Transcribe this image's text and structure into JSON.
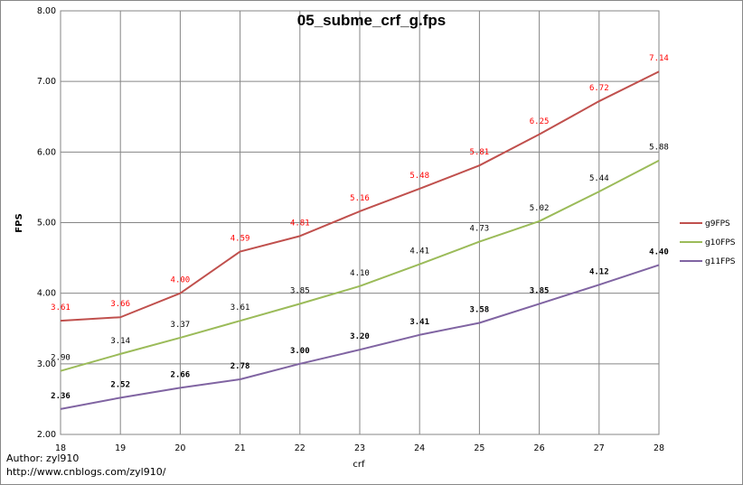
{
  "chart_data": {
    "type": "line",
    "title": "05_subme_crf_g.fps",
    "xlabel": "crf",
    "ylabel": "FPS",
    "x": [
      18,
      19,
      20,
      21,
      22,
      23,
      24,
      25,
      26,
      27,
      28
    ],
    "ylim": [
      2.0,
      8.0
    ],
    "yticks": [
      "2.00",
      "3.00",
      "4.00",
      "5.00",
      "6.00",
      "7.00",
      "8.00"
    ],
    "grid": true,
    "legend_position": "right",
    "series": [
      {
        "name": "g9FPS",
        "color": "#c0504d",
        "label_color": "#ff0000",
        "values": [
          3.61,
          3.66,
          4.0,
          4.59,
          4.81,
          5.16,
          5.48,
          5.81,
          6.25,
          6.72,
          7.14
        ],
        "labels": [
          "3.61",
          "3.66",
          "4.00",
          "4.59",
          "4.81",
          "5.16",
          "5.48",
          "5.81",
          "6.25",
          "6.72",
          "7.14"
        ]
      },
      {
        "name": "g10FPS",
        "color": "#9bbb59",
        "label_color": "#000000",
        "values": [
          2.9,
          3.14,
          3.37,
          3.61,
          3.85,
          4.1,
          4.41,
          4.73,
          5.02,
          5.44,
          5.88
        ],
        "labels": [
          "2.90",
          "3.14",
          "3.37",
          "3.61",
          "3.85",
          "4.10",
          "4.41",
          "4.73",
          "5.02",
          "5.44",
          "5.88"
        ]
      },
      {
        "name": "g11FPS",
        "color": "#8064a2",
        "label_color": "#000000",
        "values": [
          2.36,
          2.52,
          2.66,
          2.78,
          3.0,
          3.2,
          3.41,
          3.58,
          3.85,
          4.12,
          4.4
        ],
        "labels": [
          "2.36",
          "2.52",
          "2.66",
          "2.78",
          "3.00",
          "3.20",
          "3.41",
          "3.58",
          "3.85",
          "4.12",
          "4.40"
        ]
      }
    ]
  },
  "credits": {
    "author": "Author: zyl910",
    "url": "http://www.cnblogs.com/zyl910/"
  }
}
